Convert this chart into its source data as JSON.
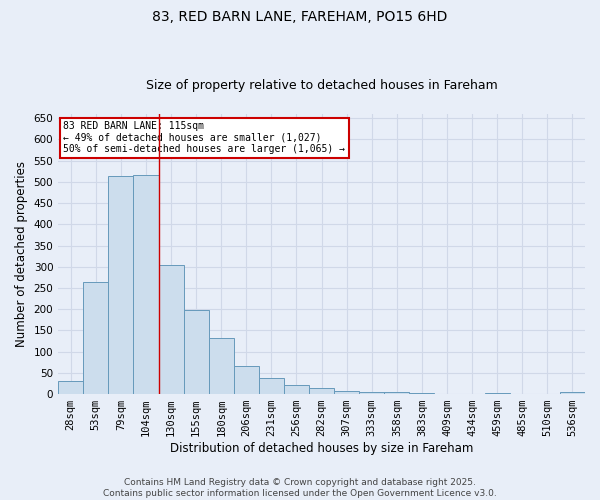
{
  "title_line1": "83, RED BARN LANE, FAREHAM, PO15 6HD",
  "title_line2": "Size of property relative to detached houses in Fareham",
  "xlabel": "Distribution of detached houses by size in Fareham",
  "ylabel": "Number of detached properties",
  "categories": [
    "28sqm",
    "53sqm",
    "79sqm",
    "104sqm",
    "130sqm",
    "155sqm",
    "180sqm",
    "206sqm",
    "231sqm",
    "256sqm",
    "282sqm",
    "307sqm",
    "333sqm",
    "358sqm",
    "383sqm",
    "409sqm",
    "434sqm",
    "459sqm",
    "485sqm",
    "510sqm",
    "536sqm"
  ],
  "values": [
    30,
    265,
    515,
    517,
    305,
    198,
    133,
    67,
    38,
    22,
    15,
    7,
    6,
    4,
    2,
    1,
    0,
    2,
    0,
    1,
    4
  ],
  "bar_color": "#ccdded",
  "bar_edge_color": "#6699bb",
  "red_line_x": 3.5,
  "annotation_text": "83 RED BARN LANE: 115sqm\n← 49% of detached houses are smaller (1,027)\n50% of semi-detached houses are larger (1,065) →",
  "annotation_box_color": "#ffffff",
  "annotation_box_edge": "#cc0000",
  "ylim": [
    0,
    660
  ],
  "yticks": [
    0,
    50,
    100,
    150,
    200,
    250,
    300,
    350,
    400,
    450,
    500,
    550,
    600,
    650
  ],
  "bg_color": "#e8eef8",
  "plot_bg_color": "#e8eef8",
  "grid_color": "#d0d8e8",
  "footnote": "Contains HM Land Registry data © Crown copyright and database right 2025.\nContains public sector information licensed under the Open Government Licence v3.0.",
  "title_fontsize": 10,
  "subtitle_fontsize": 9,
  "axis_label_fontsize": 8.5,
  "tick_fontsize": 7.5,
  "footnote_fontsize": 6.5
}
